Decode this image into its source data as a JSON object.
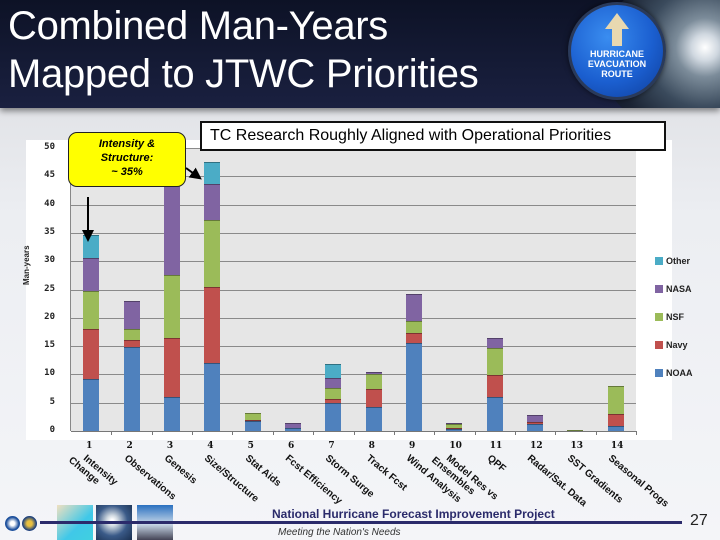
{
  "slide": {
    "title_line1": "Combined Man-Years",
    "title_line2": "Mapped to JTWC Priorities",
    "sign_text": [
      "HURRICANE",
      "EVACUATION",
      "ROUTE"
    ],
    "banner": "TC Research Roughly Aligned with Operational Priorities",
    "callout_lines": [
      "Intensity &",
      "Structure:",
      "~ 35%"
    ],
    "footer_title": "National Hurricane Forecast Improvement Project",
    "footer_subtitle": "Meeting the Nation's Needs",
    "page_number": "27"
  },
  "chart_data": {
    "type": "bar",
    "stacked": true,
    "title": "TC Research Roughly Aligned with Operational Priorities",
    "xlabel": "",
    "ylabel": "Man-years",
    "ylim": [
      0,
      50
    ],
    "yticks": [
      0,
      5,
      10,
      15,
      20,
      25,
      30,
      35,
      40,
      45,
      50
    ],
    "grid": true,
    "legend_position": "right",
    "categories": [
      {
        "num": "1",
        "label": "Intensity Change"
      },
      {
        "num": "2",
        "label": "Observations"
      },
      {
        "num": "3",
        "label": "Genesis"
      },
      {
        "num": "4",
        "label": "Size/Structure"
      },
      {
        "num": "5",
        "label": "Stat Aids"
      },
      {
        "num": "6",
        "label": "Fcst Efficiency"
      },
      {
        "num": "7",
        "label": "Storm Surge"
      },
      {
        "num": "8",
        "label": "Track Fcst"
      },
      {
        "num": "9",
        "label": "Wind Analysis"
      },
      {
        "num": "10",
        "label": "Model Res vs Ensembles"
      },
      {
        "num": "11",
        "label": "QPF"
      },
      {
        "num": "12",
        "label": "Radar/Sat. Data"
      },
      {
        "num": "13",
        "label": "SST Gradients"
      },
      {
        "num": "14",
        "label": "Seasonal Progs"
      }
    ],
    "series": [
      {
        "name": "NOAA",
        "color": "#4f81bd",
        "values": [
          9.2,
          14.8,
          6.0,
          12.1,
          1.8,
          0.5,
          4.9,
          4.2,
          15.5,
          0.3,
          6.0,
          1.2,
          0.0,
          0.9
        ]
      },
      {
        "name": "Navy",
        "color": "#c0504d",
        "values": [
          8.8,
          1.2,
          10.5,
          13.4,
          0.2,
          0.0,
          0.7,
          3.2,
          1.9,
          0.3,
          3.9,
          0.4,
          0.0,
          2.1
        ]
      },
      {
        "name": "NSF",
        "color": "#9bbb59",
        "values": [
          6.8,
          2.1,
          11.1,
          11.8,
          1.2,
          0.0,
          2.0,
          2.6,
          2.0,
          0.7,
          4.7,
          0.0,
          0.2,
          4.9
        ]
      },
      {
        "name": "NASA",
        "color": "#8064a2",
        "values": [
          5.8,
          4.8,
          18.4,
          6.4,
          0.0,
          0.9,
          1.7,
          0.4,
          4.9,
          0.1,
          1.9,
          1.2,
          0.0,
          0.0
        ]
      },
      {
        "name": "Other",
        "color": "#4bacc6",
        "values": [
          4.1,
          0.0,
          0.0,
          3.8,
          0.0,
          0.0,
          2.5,
          0.0,
          0.0,
          0.0,
          0.0,
          0.0,
          0.0,
          0.0
        ]
      }
    ],
    "legend": [
      "Other",
      "NASA",
      "NSF",
      "Navy",
      "NOAA"
    ],
    "annotations": [
      {
        "text": "Intensity & Structure: ~ 35%",
        "points_to": [
          "1",
          "4"
        ]
      }
    ]
  }
}
